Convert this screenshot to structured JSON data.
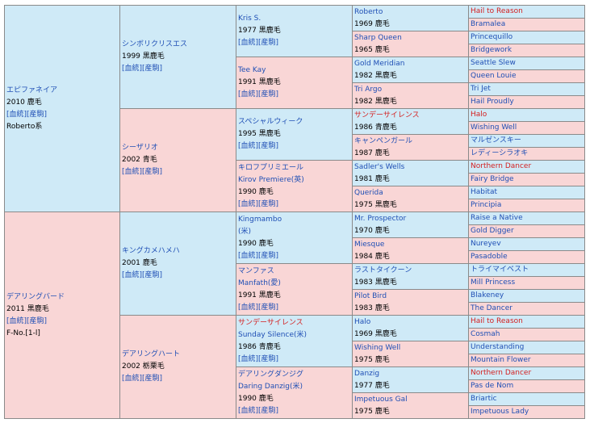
{
  "colors": {
    "sire_bg": "#cfeaf7",
    "dam_bg": "#f9d6d6",
    "link": "#1f4fb5",
    "highlight": "#d42020",
    "border": "#8a8a8a"
  },
  "pedigree": {
    "subject_sire": {
      "name": "エピファネイア",
      "year_color": "2010 鹿毛",
      "links": "[血統][産駒]",
      "line": "Roberto系"
    },
    "subject_dam": {
      "name": "デアリングバード",
      "year_color": "2011 黒鹿毛",
      "links": "[血統][産駒]",
      "family": "F-No.[1-l]"
    },
    "g2": [
      {
        "name": "シンボリクリスエス",
        "year_color": "1999 黒鹿毛",
        "links": "[血統][産駒]"
      },
      {
        "name": "シーザリオ",
        "year_color": "2002 青毛",
        "links": "[血統][産駒]"
      },
      {
        "name": "キングカメハメハ",
        "year_color": "2001 鹿毛",
        "links": "[血統][産駒]"
      },
      {
        "name": "デアリングハート",
        "year_color": "2002 栃栗毛",
        "links": "[血統][産駒]"
      }
    ],
    "g3": [
      {
        "name": "Kris S.",
        "alt": "",
        "year_color": "1977 黒鹿毛",
        "links": "[血統][産駒]"
      },
      {
        "name": "Tee Kay",
        "alt": "",
        "year_color": "1991 黒鹿毛",
        "links": "[血統][産駒]"
      },
      {
        "name": "スペシャルウィーク",
        "alt": "",
        "year_color": "1995 黒鹿毛",
        "links": "[血統][産駒]"
      },
      {
        "name": "キロフプリミエール",
        "alt": "Kirov Premiere(英)",
        "year_color": "1990 鹿毛",
        "links": "[血統][産駒]"
      },
      {
        "name": "Kingmambo",
        "alt": "(米)",
        "year_color": "1990 鹿毛",
        "links": "[血統][産駒]"
      },
      {
        "name": "マンファス",
        "alt": "Manfath(愛)",
        "year_color": "1991 黒鹿毛",
        "links": "[血統][産駒]"
      },
      {
        "name": "サンデーサイレンス",
        "alt": "Sunday Silence(米)",
        "year_color": "1986 青鹿毛",
        "links": "[血統][産駒]"
      },
      {
        "name": "デアリングダンジグ",
        "alt": "Daring Danzig(米)",
        "year_color": "1990 鹿毛",
        "links": "[血統][産駒]"
      }
    ],
    "g4": [
      {
        "name": "Roberto",
        "year_color": "1969 鹿毛"
      },
      {
        "name": "Sharp Queen",
        "year_color": "1965 鹿毛"
      },
      {
        "name": "Gold Meridian",
        "year_color": "1982 黒鹿毛"
      },
      {
        "name": "Tri Argo",
        "year_color": "1982 黒鹿毛"
      },
      {
        "name": "サンデーサイレンス",
        "year_color": "1986 青鹿毛"
      },
      {
        "name": "キャンペンガール",
        "year_color": "1987 鹿毛"
      },
      {
        "name": "Sadler's Wells",
        "year_color": "1981 鹿毛"
      },
      {
        "name": "Querida",
        "year_color": "1975 黒鹿毛"
      },
      {
        "name": "Mr. Prospector",
        "year_color": "1970 鹿毛"
      },
      {
        "name": "Miesque",
        "year_color": "1984 鹿毛"
      },
      {
        "name": "ラストタイクーン",
        "year_color": "1983 黒鹿毛"
      },
      {
        "name": "Pilot Bird",
        "year_color": "1983 鹿毛"
      },
      {
        "name": "Halo",
        "year_color": "1969 黒鹿毛"
      },
      {
        "name": "Wishing Well",
        "year_color": "1975 鹿毛"
      },
      {
        "name": "Danzig",
        "year_color": "1977 鹿毛"
      },
      {
        "name": "Impetuous Gal",
        "year_color": "1975 鹿毛"
      }
    ],
    "g5": [
      "Hail to Reason",
      "Bramalea",
      "Princequillo",
      "Bridgework",
      "Seattle Slew",
      "Queen Louie",
      "Tri Jet",
      "Hail Proudly",
      "Halo",
      "Wishing Well",
      "マルゼンスキー",
      "レディーシラオキ",
      "Northern Dancer",
      "Fairy Bridge",
      "Habitat",
      "Principia",
      "Raise a Native",
      "Gold Digger",
      "Nureyev",
      "Pasadoble",
      "トライマイベスト",
      "Mill Princess",
      "Blakeney",
      "The Dancer",
      "Hail to Reason",
      "Cosmah",
      "Understanding",
      "Mountain Flower",
      "Northern Dancer",
      "Pas de Nom",
      "Briartic",
      "Impetuous Lady"
    ]
  }
}
